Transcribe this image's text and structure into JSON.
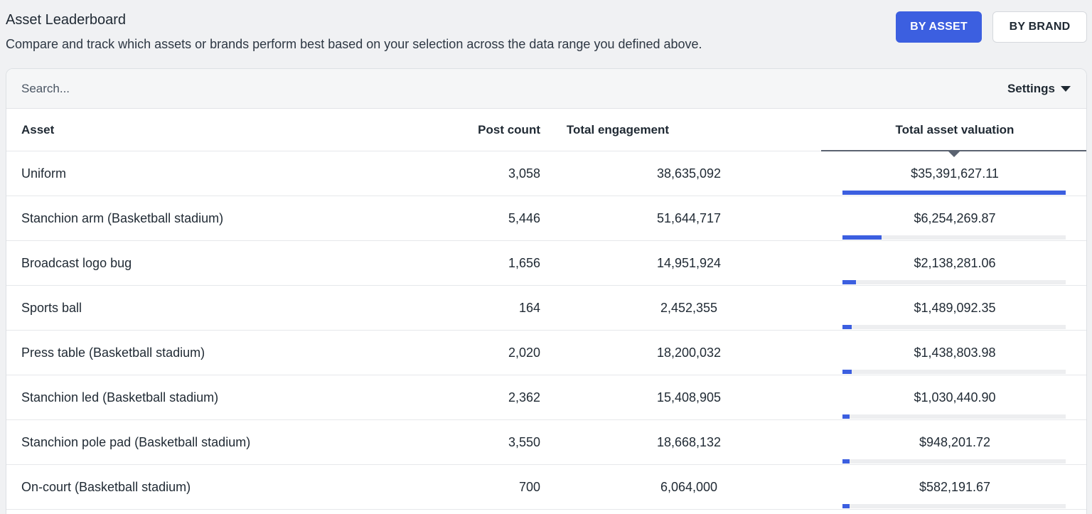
{
  "header": {
    "title": "Asset Leaderboard",
    "subtitle": "Compare and track which assets or brands perform best based on your selection across the data range you defined above."
  },
  "toggle": {
    "by_asset": "BY ASSET",
    "by_brand": "BY BRAND",
    "active": "by_asset"
  },
  "toolbar": {
    "search_placeholder": "Search...",
    "settings_label": "Settings"
  },
  "colors": {
    "accent": "#3c5fe0",
    "background": "#f0f1f3"
  },
  "table": {
    "columns": {
      "asset": "Asset",
      "post_count": "Post count",
      "total_engagement": "Total engagement",
      "total_asset_valuation": "Total asset valuation"
    },
    "sorted_by": "total_asset_valuation",
    "rows": [
      {
        "asset": "Uniform",
        "post_count": "3,058",
        "total_engagement": "38,635,092",
        "valuation": "$35,391,627.11",
        "valuation_value": 35391627.11
      },
      {
        "asset": "Stanchion arm (Basketball stadium)",
        "post_count": "5,446",
        "total_engagement": "51,644,717",
        "valuation": "$6,254,269.87",
        "valuation_value": 6254269.87
      },
      {
        "asset": "Broadcast logo bug",
        "post_count": "1,656",
        "total_engagement": "14,951,924",
        "valuation": "$2,138,281.06",
        "valuation_value": 2138281.06
      },
      {
        "asset": "Sports ball",
        "post_count": "164",
        "total_engagement": "2,452,355",
        "valuation": "$1,489,092.35",
        "valuation_value": 1489092.35
      },
      {
        "asset": "Press table (Basketball stadium)",
        "post_count": "2,020",
        "total_engagement": "18,200,032",
        "valuation": "$1,438,803.98",
        "valuation_value": 1438803.98
      },
      {
        "asset": "Stanchion led (Basketball stadium)",
        "post_count": "2,362",
        "total_engagement": "15,408,905",
        "valuation": "$1,030,440.90",
        "valuation_value": 1030440.9
      },
      {
        "asset": "Stanchion pole pad (Basketball stadium)",
        "post_count": "3,550",
        "total_engagement": "18,668,132",
        "valuation": "$948,201.72",
        "valuation_value": 948201.72
      },
      {
        "asset": "On-court (Basketball stadium)",
        "post_count": "700",
        "total_engagement": "6,064,000",
        "valuation": "$582,191.67",
        "valuation_value": 582191.67
      }
    ]
  }
}
